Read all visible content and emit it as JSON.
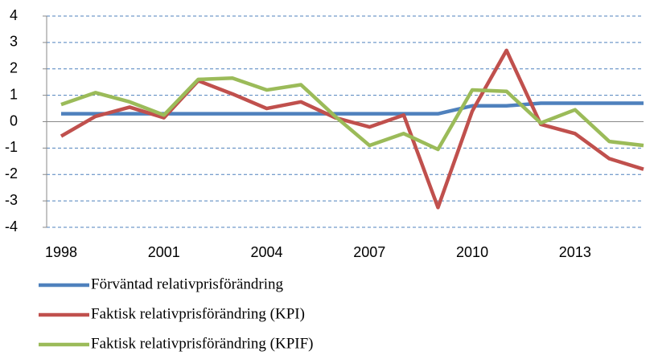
{
  "chart_data": {
    "type": "line",
    "categories": [
      "1998",
      null,
      null,
      "2001",
      null,
      null,
      "2004",
      null,
      null,
      "2007",
      null,
      null,
      "2010",
      null,
      null,
      "2013",
      null,
      null
    ],
    "series": [
      {
        "name": "Förväntad relativprisförändring",
        "color": "#4f81bd",
        "values": [
          0.3,
          0.3,
          0.3,
          0.3,
          0.3,
          0.3,
          0.3,
          0.3,
          0.3,
          0.3,
          0.3,
          0.3,
          0.6,
          0.6,
          0.7,
          0.7,
          0.7,
          0.7
        ]
      },
      {
        "name": "Faktisk relativprisförändring (KPI)",
        "color": "#c0504d",
        "values": [
          -0.55,
          0.2,
          0.55,
          0.15,
          1.55,
          1.05,
          0.5,
          0.75,
          0.15,
          -0.2,
          0.25,
          -3.25,
          0.4,
          2.7,
          -0.1,
          -0.45,
          -1.4,
          -1.8
        ]
      },
      {
        "name": "Faktisk relativprisförändring (KPIF)",
        "color": "#9bbb59",
        "values": [
          0.65,
          1.1,
          0.75,
          0.25,
          1.6,
          1.65,
          1.2,
          1.4,
          0.2,
          -0.9,
          -0.45,
          -1.05,
          1.2,
          1.15,
          -0.05,
          0.45,
          -0.75,
          -0.9
        ]
      }
    ],
    "ylim": [
      -4,
      4
    ],
    "yticks": [
      -4,
      -3,
      -2,
      -1,
      0,
      1,
      2,
      3,
      4
    ],
    "grid": true
  }
}
